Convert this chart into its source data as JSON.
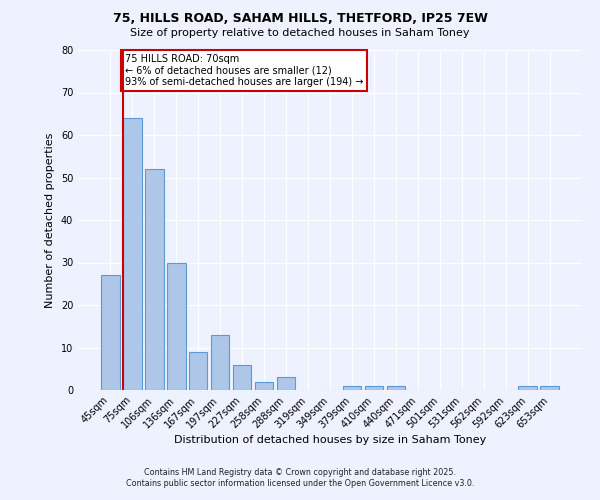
{
  "title1": "75, HILLS ROAD, SAHAM HILLS, THETFORD, IP25 7EW",
  "title2": "Size of property relative to detached houses in Saham Toney",
  "xlabel": "Distribution of detached houses by size in Saham Toney",
  "ylabel": "Number of detached properties",
  "categories": [
    "45sqm",
    "75sqm",
    "106sqm",
    "136sqm",
    "167sqm",
    "197sqm",
    "227sqm",
    "258sqm",
    "288sqm",
    "319sqm",
    "349sqm",
    "379sqm",
    "410sqm",
    "440sqm",
    "471sqm",
    "501sqm",
    "531sqm",
    "562sqm",
    "592sqm",
    "623sqm",
    "653sqm"
  ],
  "values": [
    27,
    64,
    52,
    30,
    9,
    13,
    6,
    2,
    3,
    0,
    0,
    1,
    1,
    1,
    0,
    0,
    0,
    0,
    0,
    1,
    1
  ],
  "bar_color": "#aec6e8",
  "bar_edge_color": "#5b9bd5",
  "highlight_index": 1,
  "highlight_color": "#cc0000",
  "annotation_text": "75 HILLS ROAD: 70sqm\n← 6% of detached houses are smaller (12)\n93% of semi-detached houses are larger (194) →",
  "annotation_box_color": "white",
  "annotation_box_edge_color": "#cc0000",
  "ylim": [
    0,
    80
  ],
  "yticks": [
    0,
    10,
    20,
    30,
    40,
    50,
    60,
    70,
    80
  ],
  "background_color": "#eef2ff",
  "footer_line1": "Contains HM Land Registry data © Crown copyright and database right 2025.",
  "footer_line2": "Contains public sector information licensed under the Open Government Licence v3.0."
}
